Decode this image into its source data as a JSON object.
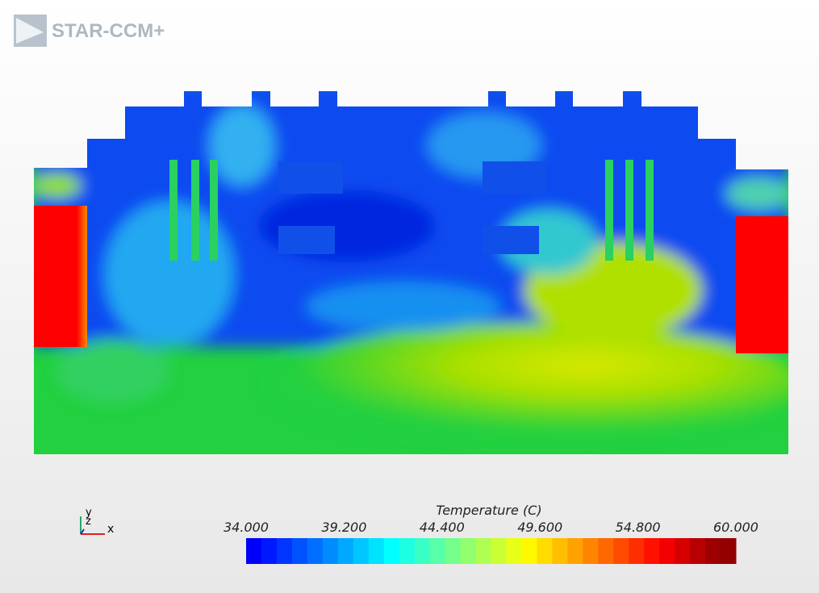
{
  "logo": "STAR-CCM+",
  "colorbar": {
    "title": "Temperature (C)",
    "ticks": [
      {
        "value": 34,
        "label": "34.000"
      },
      {
        "value": 39.2,
        "label": "39.200"
      },
      {
        "value": 44.4,
        "label": "44.400"
      },
      {
        "value": 49.6,
        "label": "49.600"
      },
      {
        "value": 54.8,
        "label": "54.800"
      },
      {
        "value": 60,
        "label": "60.000"
      }
    ]
  },
  "triad": {
    "y": "y",
    "z": "z",
    "x": "x"
  }
}
